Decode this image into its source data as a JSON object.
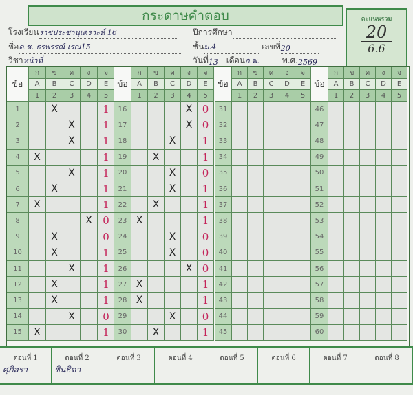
{
  "title": "กระดาษคำตอบ",
  "score": {
    "label": "คะแนนรวม",
    "value": "20",
    "sub": "6.6"
  },
  "fields": {
    "school_label": "โรงเรียน",
    "school": "ราชประชานุเคราะห์ 16",
    "year_label": "ปีการศึกษา",
    "year": "",
    "name_label": "ชื่อ",
    "name": "ด.ช. ธรพรรณ์ เรณ15",
    "class_label": "ชั้น",
    "class": "ม.4",
    "number_label": "เลขที่",
    "number": "20",
    "subject_label": "วิชา",
    "subject": "หน้าที่",
    "day_label": "วันที่",
    "day": "13",
    "month_label": "เดือน",
    "month": "ก.พ.",
    "be_label": "พ.ศ.",
    "be": "2569"
  },
  "grid": {
    "q_header": "ข้อ",
    "thai_letters": [
      "ก",
      "ข",
      "ค",
      "ง",
      "จ"
    ],
    "latin_letters": [
      "A",
      "B",
      "C",
      "D",
      "E"
    ],
    "digits": [
      "1",
      "2",
      "3",
      "4",
      "5"
    ],
    "blocks": [
      {
        "start": 1,
        "answers": [
          "B",
          "C",
          "C",
          "A",
          "C",
          "B",
          "A",
          "D",
          "B",
          "B",
          "C",
          "B",
          "B",
          "C",
          "A"
        ],
        "marks": [
          "1",
          "1",
          "1",
          "1",
          "1",
          "1",
          "1",
          "0",
          "0",
          "1",
          "1",
          "1",
          "1",
          "0",
          "1"
        ]
      },
      {
        "start": 16,
        "answers": [
          "D",
          "D",
          "C",
          "B",
          "C",
          "C",
          "B",
          "A",
          "C",
          "C",
          "D",
          "A",
          "A",
          "C",
          "B"
        ],
        "marks": [
          "0",
          "0",
          "1",
          "1",
          "0",
          "1",
          "1",
          "1",
          "0",
          "0",
          "0",
          "1",
          "1",
          "0",
          "1"
        ]
      },
      {
        "start": 31,
        "answers": [],
        "marks": []
      },
      {
        "start": 46,
        "answers": [],
        "marks": []
      }
    ],
    "mark_symbol": "X"
  },
  "parts": [
    {
      "label": "ตอนที่ 1",
      "text": "ศุภิสรา"
    },
    {
      "label": "ตอนที่ 2",
      "text": "ชินธิดา"
    },
    {
      "label": "ตอนที่ 3",
      "text": ""
    },
    {
      "label": "ตอนที่ 4",
      "text": ""
    },
    {
      "label": "ตอนที่ 5",
      "text": ""
    },
    {
      "label": "ตอนที่ 6",
      "text": ""
    },
    {
      "label": "ตอนที่ 7",
      "text": ""
    },
    {
      "label": "ตอนที่ 8",
      "text": ""
    }
  ],
  "colors": {
    "green": "#3f8a4a",
    "red_pen": "#c4245a",
    "blue_pen": "#2a2a5a"
  }
}
